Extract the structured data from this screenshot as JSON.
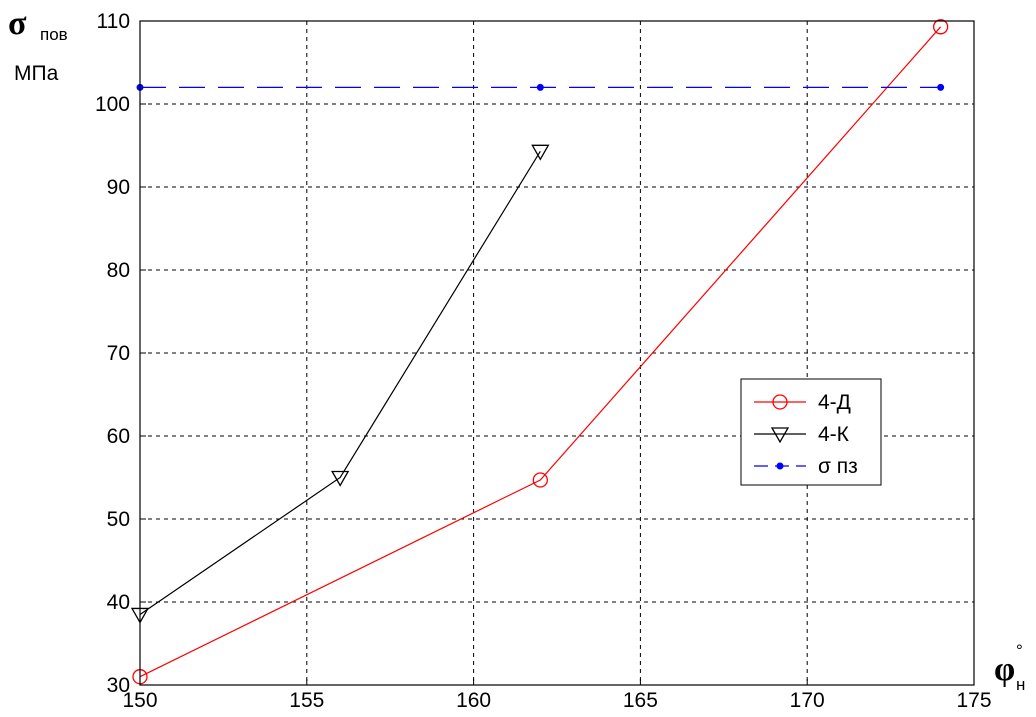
{
  "chart_data": {
    "type": "line",
    "ylabel": {
      "symbol": "σ",
      "subscript": "пов",
      "unit": "МПа"
    },
    "xlabel": {
      "symbol": "φ",
      "subscript": "н",
      "superscript": "°"
    },
    "xlim": [
      150,
      175
    ],
    "ylim": [
      30,
      110
    ],
    "xticks": [
      150,
      155,
      160,
      165,
      170,
      175
    ],
    "yticks": [
      30,
      40,
      50,
      60,
      70,
      80,
      90,
      100,
      110
    ],
    "grid": true,
    "legend_position": "center-right",
    "series": [
      {
        "name": "4-Д",
        "color": "#ff0000",
        "marker": "circle",
        "line": "solid",
        "x": [
          150,
          162,
          174
        ],
        "y": [
          31,
          54.7,
          109.3
        ]
      },
      {
        "name": "4-К",
        "color": "#000000",
        "marker": "triangle-down",
        "line": "solid",
        "x": [
          150,
          156,
          162
        ],
        "y": [
          38.5,
          55,
          94.3
        ]
      },
      {
        "name": "σ пз",
        "color": "#0000ff",
        "marker": "dot",
        "line": "dashed",
        "x": [
          150,
          162,
          174
        ],
        "y": [
          102,
          102,
          102
        ]
      }
    ]
  }
}
